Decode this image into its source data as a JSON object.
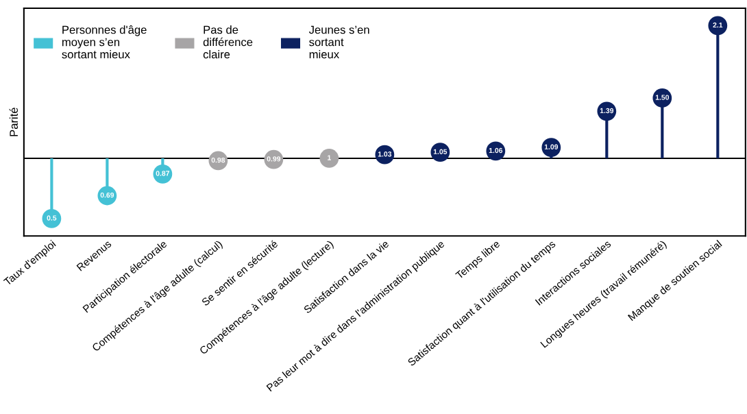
{
  "chart_data": {
    "type": "lollipop",
    "ylabel": "Parité",
    "categories": [
      "Taux d'emploi",
      "Revenus",
      "Participation électorale",
      "Compétences à l'âge adulte (calcul)",
      "Se sentir en sécurité",
      "Compétences à l'âge adulte (lecture)",
      "Satisfaction dans la vie",
      "Pas leur mot à dire dans l'administration publique",
      "Temps libre",
      "Satisfaction quant à l'utilisation du temps",
      "Interactions sociales",
      "Longues heures (travail rémunéré)",
      "Manque de soutien social"
    ],
    "series": [
      {
        "name": "Personnes d'âge\nmoyen s’en\nsortant mieux",
        "color": "#44c1d5",
        "values": [
          0.5,
          0.69,
          0.87,
          null,
          null,
          null,
          null,
          null,
          null,
          null,
          null,
          null,
          null
        ],
        "value_labels": [
          "0.5",
          "0.69",
          "0.87",
          null,
          null,
          null,
          null,
          null,
          null,
          null,
          null,
          null,
          null
        ]
      },
      {
        "name": "Pas de\ndifférence\nclaire",
        "color": "#a7a5a6",
        "values": [
          null,
          null,
          null,
          0.98,
          0.99,
          1,
          null,
          null,
          null,
          null,
          null,
          null,
          null
        ],
        "value_labels": [
          null,
          null,
          null,
          "0.98",
          "0.99",
          "1",
          null,
          null,
          null,
          null,
          null,
          null,
          null
        ]
      },
      {
        "name": "Jeunes s’en\nsortant\nmieux",
        "color": "#0c2160",
        "values": [
          null,
          null,
          null,
          null,
          null,
          null,
          1.03,
          1.05,
          1.06,
          1.09,
          1.39,
          1.5,
          2.1
        ],
        "value_labels": [
          null,
          null,
          null,
          null,
          null,
          null,
          "1.03",
          "1.05",
          "1.06",
          "1.09",
          "1.39",
          "1.50",
          "2.1"
        ]
      }
    ],
    "ref_lines": [
      {
        "axis": "y",
        "value": 1,
        "color": "#000000"
      }
    ],
    "tick_labels": "x",
    "grid": false,
    "legend": "top left",
    "marker": "circle"
  }
}
